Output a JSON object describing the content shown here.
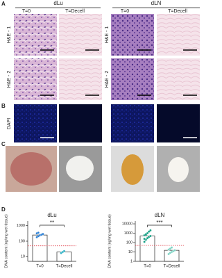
{
  "panel_labels": [
    "A",
    "B",
    "C",
    "D"
  ],
  "headers": [
    {
      "title": "dLu",
      "cols": [
        "T=0",
        "T=Decell"
      ]
    },
    {
      "title": "dLN",
      "cols": [
        "T=0",
        "T=Decell"
      ]
    }
  ],
  "row_labels": {
    "dLu": [
      "H&E - 1",
      "H&E - 2",
      "DAPI"
    ],
    "dLN": [
      "H&E - 1",
      "H&E - 2"
    ]
  },
  "chart_data": [
    {
      "type": "bar",
      "title": "dLu",
      "y_label": "DNA content (ng/mg wet tissue)",
      "log": true,
      "categories": [
        "T=0",
        "T=Decell"
      ],
      "values": [
        250,
        20
      ],
      "points": [
        [
          180,
          210,
          240,
          260,
          290,
          320,
          350
        ],
        [
          17,
          20,
          23
        ]
      ],
      "point_colors": [
        "#2b7fd4",
        "#35b5c8"
      ],
      "threshold": 50,
      "threshold_color": "#e0404a",
      "annotation": "**",
      "ylim": [
        5,
        2000
      ],
      "yticks": [
        10,
        100,
        1000
      ]
    },
    {
      "type": "bar",
      "title": "dLN",
      "y_label": "DNA content (ng/mg wet tissue)",
      "log": true,
      "categories": [
        "T=0",
        "T=Decell"
      ],
      "values": [
        500,
        15
      ],
      "points": [
        [
          120,
          200,
          300,
          400,
          500,
          600,
          800,
          1000,
          1500,
          2000,
          250,
          700
        ],
        [
          6,
          8,
          10,
          12,
          15,
          18,
          22,
          30
        ]
      ],
      "point_colors": [
        "#17a086",
        "#7fd3c4"
      ],
      "threshold": 50,
      "threshold_color": "#e0404a",
      "annotation": "***",
      "ylim": [
        1,
        20000
      ],
      "yticks": [
        1,
        10,
        100,
        1000,
        10000
      ]
    }
  ]
}
